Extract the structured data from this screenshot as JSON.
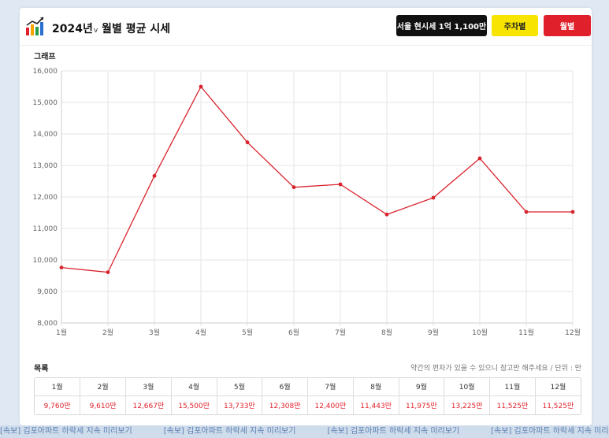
{
  "header": {
    "title": "2024년",
    "caret": "v",
    "title_rest": " 월별 평균 시세",
    "price_button": "서울 현시세 1억 1,100만",
    "weekly_button": "주차별",
    "monthly_button": "월별",
    "logo_icon": "bar-chart-growth-icon"
  },
  "chart_section": {
    "label": "그래프"
  },
  "list_section": {
    "label": "목록",
    "note": "약간의 편차가 있을 수 있으니 참고만 해주세요 / 단위 : 만"
  },
  "chart_data": {
    "type": "line",
    "categories": [
      "1월",
      "2월",
      "3월",
      "4월",
      "5월",
      "6월",
      "7월",
      "8월",
      "9월",
      "10월",
      "11월",
      "12월"
    ],
    "values": [
      9760,
      9610,
      12667,
      15500,
      13733,
      12308,
      12400,
      11443,
      11975,
      13225,
      11525,
      11525
    ],
    "ylim": [
      8000,
      16000
    ],
    "yticks": [
      8000,
      9000,
      10000,
      11000,
      12000,
      13000,
      14000,
      15000,
      16000
    ],
    "ytick_labels": [
      "8,000",
      "9,000",
      "10,000",
      "11,000",
      "12,000",
      "13,000",
      "14,000",
      "15,000",
      "16,000"
    ],
    "grid": true,
    "line_color": "#d9232d"
  },
  "table": {
    "headers": [
      "1월",
      "2월",
      "3월",
      "4월",
      "5월",
      "6월",
      "7월",
      "8월",
      "9월",
      "10월",
      "11월",
      "12월"
    ],
    "values": [
      "9,760만",
      "9,610만",
      "12,667만",
      "15,500만",
      "13,733만",
      "12,308만",
      "12,400만",
      "11,443만",
      "11,975만",
      "13,225만",
      "11,525만",
      "11,525만"
    ]
  },
  "background_text": [
    "[속보] 김포아파트 하락세 지속 미리보기",
    "[속보] 김포아파트 하락세 지속 미리보기",
    "[속보] 김포아파트 하락세 지속 미리보기",
    "[속보] 김포아파트 하락세 지속 미리보기",
    "[속보] 김포아파트 하락세 지속 미리보기"
  ]
}
